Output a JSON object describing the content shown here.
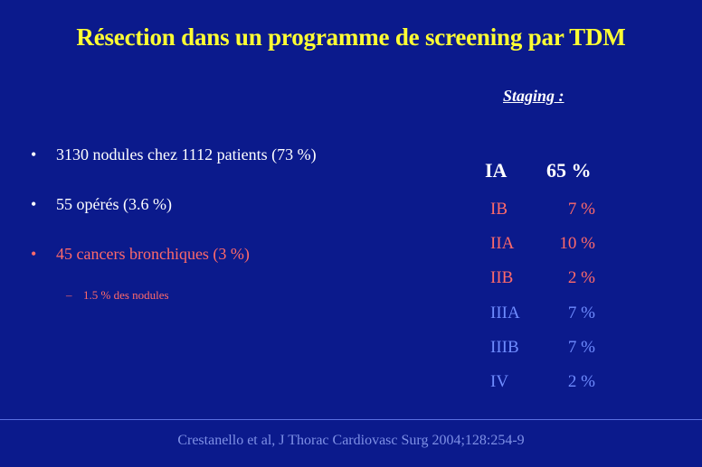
{
  "title": "Résection dans un programme de screening par TDM",
  "staging_label": "Staging :",
  "bullets": [
    {
      "marker": "•",
      "text": "3130 nodules chez 1112 patients (73 %)"
    },
    {
      "marker": "•",
      "text": "55 opérés (3.6 %)"
    },
    {
      "marker": "•",
      "text": "45 cancers bronchiques (3 %)"
    }
  ],
  "sub_bullet": {
    "marker": "–",
    "text": "1.5 % des nodules"
  },
  "staging_main": {
    "stage": "IA",
    "pct": "65 %"
  },
  "staging_rows": [
    {
      "stage": "IB",
      "pct": "7 %"
    },
    {
      "stage": "IIA",
      "pct": "10 %"
    },
    {
      "stage": "IIB",
      "pct": "2 %"
    },
    {
      "stage": "IIIA",
      "pct": "7 %"
    },
    {
      "stage": "IIIB",
      "pct": "7 %"
    },
    {
      "stage": "IV",
      "pct": "2 %"
    }
  ],
  "citation": "Crestanello et al, J Thorac Cardiovasc Surg 2004;128:254-9",
  "colors": {
    "background": "#0b1a8c",
    "title": "#ffff33",
    "highlight_red": "#ff6a6a",
    "light_blue": "#6f8cff"
  }
}
